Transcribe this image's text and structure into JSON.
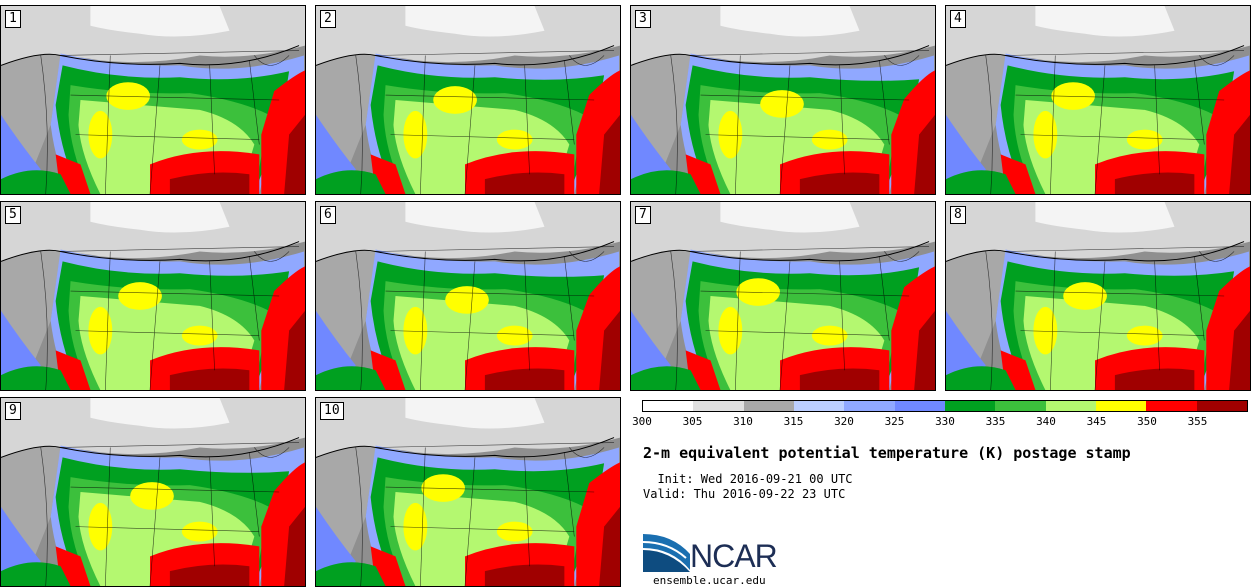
{
  "panels": [
    {
      "label": "1"
    },
    {
      "label": "2"
    },
    {
      "label": "3"
    },
    {
      "label": "4"
    },
    {
      "label": "5"
    },
    {
      "label": "6"
    },
    {
      "label": "7"
    },
    {
      "label": "8"
    },
    {
      "label": "9"
    },
    {
      "label": "10"
    }
  ],
  "colorbar": {
    "colors": [
      "#ffffff",
      "#e0e0e0",
      "#a8a8a8",
      "#bccfff",
      "#90a8ff",
      "#7088ff",
      "#00a020",
      "#3cc03c",
      "#b4f870",
      "#ffff00",
      "#ff0000",
      "#a00000"
    ],
    "ticks": [
      "300",
      "305",
      "310",
      "315",
      "320",
      "325",
      "330",
      "335",
      "340",
      "345",
      "350",
      "355"
    ]
  },
  "title": "2-m equivalent potential temperature (K) postage stamp",
  "init": "  Init: Wed 2016-09-21 00 UTC",
  "valid": "Valid: Thu 2016-09-22 23 UTC",
  "logo": {
    "text": "NCAR",
    "site": "ensemble.ucar.edu"
  }
}
